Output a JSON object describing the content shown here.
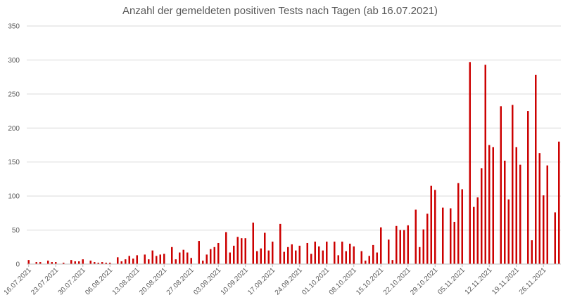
{
  "chart_data": {
    "type": "bar",
    "title": "Anzahl der gemeldeten positiven Tests nach Tagen (ab 16.07.2021)",
    "xlabel": "",
    "ylabel": "",
    "ylim": [
      0,
      350
    ],
    "yticks": [
      "0",
      "50",
      "100",
      "150",
      "200",
      "250",
      "300",
      "350"
    ],
    "grid": true,
    "legend": "none",
    "bar_color": "#cc0000",
    "start_date": "16.07.2021",
    "tick_labels": [
      "16.07.2021",
      "23.07.2021",
      "30.07.2021",
      "06.08.2021",
      "13.08.2021",
      "20.08.2021",
      "27.08.2021",
      "03.09.2021",
      "10.09.2021",
      "17.09.2021",
      "24.09.2021",
      "01.10.2021",
      "08.10.2021",
      "15.10.2021",
      "22.10.2021",
      "29.10.2021",
      "05.11.2021",
      "12.11.2021",
      "19.11.2021",
      "26.11.2021"
    ],
    "values": [
      6,
      0,
      3,
      3,
      0,
      5,
      3,
      3,
      0,
      2,
      0,
      6,
      4,
      4,
      7,
      0,
      5,
      3,
      2,
      3,
      2,
      2,
      0,
      10,
      4,
      7,
      12,
      8,
      13,
      0,
      14,
      7,
      20,
      12,
      14,
      15,
      0,
      25,
      7,
      17,
      21,
      17,
      9,
      0,
      34,
      5,
      14,
      22,
      25,
      31,
      0,
      47,
      17,
      27,
      40,
      38,
      38,
      0,
      61,
      19,
      23,
      46,
      20,
      33,
      0,
      59,
      18,
      25,
      29,
      20,
      27,
      0,
      31,
      15,
      33,
      26,
      20,
      33,
      0,
      33,
      13,
      33,
      19,
      30,
      26,
      0,
      19,
      5,
      12,
      28,
      17,
      54,
      0,
      36,
      6,
      56,
      50,
      50,
      57,
      0,
      80,
      25,
      51,
      74,
      115,
      109,
      0,
      83,
      0,
      82,
      62,
      119,
      110,
      0,
      297,
      84,
      98,
      141,
      293,
      175,
      172,
      0,
      232,
      152,
      95,
      234,
      172,
      146,
      0,
      225,
      35,
      278,
      163,
      101,
      145,
      0,
      76,
      180
    ]
  }
}
